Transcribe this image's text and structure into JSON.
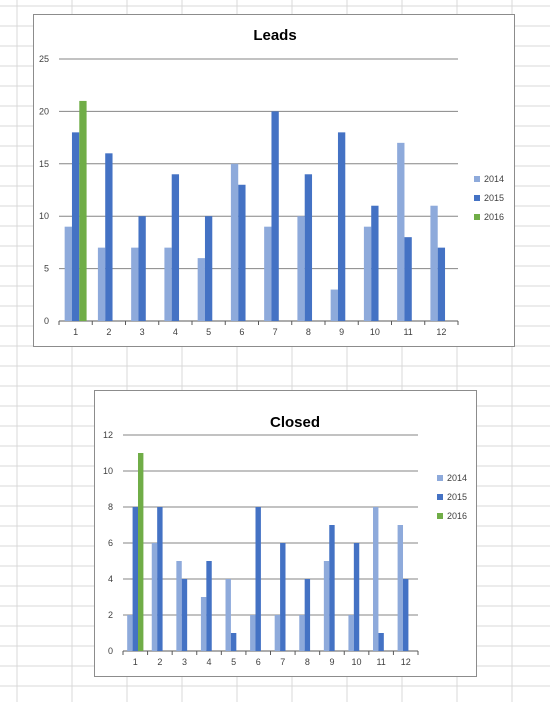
{
  "sheet": {
    "gridline_color": "#d9d9d9"
  },
  "colors": {
    "2014": "#8eaadb",
    "2015": "#4472c4",
    "2016": "#70ad47"
  },
  "chart_data": [
    {
      "type": "bar",
      "title": "Leads",
      "categories": [
        "1",
        "2",
        "3",
        "4",
        "5",
        "6",
        "7",
        "8",
        "9",
        "10",
        "11",
        "12"
      ],
      "series": [
        {
          "name": "2014",
          "values": [
            9,
            7,
            7,
            7,
            6,
            15,
            9,
            10,
            3,
            9,
            17,
            11
          ]
        },
        {
          "name": "2015",
          "values": [
            18,
            16,
            10,
            14,
            10,
            13,
            20,
            14,
            18,
            11,
            8,
            7
          ]
        },
        {
          "name": "2016",
          "values": [
            21,
            null,
            null,
            null,
            null,
            null,
            null,
            null,
            null,
            null,
            null,
            null
          ]
        }
      ],
      "y_ticks": [
        "0",
        "5",
        "10",
        "15",
        "20",
        "25"
      ],
      "ylim": [
        0,
        25
      ],
      "grid": true,
      "legend": "right"
    },
    {
      "type": "bar",
      "title": "Closed",
      "categories": [
        "1",
        "2",
        "3",
        "4",
        "5",
        "6",
        "7",
        "8",
        "9",
        "10",
        "11",
        "12"
      ],
      "series": [
        {
          "name": "2014",
          "values": [
            2,
            6,
            5,
            3,
            4,
            2,
            2,
            2,
            5,
            2,
            8,
            7
          ]
        },
        {
          "name": "2015",
          "values": [
            8,
            8,
            4,
            5,
            1,
            8,
            6,
            4,
            7,
            6,
            1,
            4
          ]
        },
        {
          "name": "2016",
          "values": [
            11,
            null,
            null,
            null,
            null,
            null,
            null,
            null,
            null,
            null,
            null,
            null
          ]
        }
      ],
      "y_ticks": [
        "0",
        "2",
        "4",
        "6",
        "8",
        "10",
        "12"
      ],
      "ylim": [
        0,
        12
      ],
      "grid": true,
      "legend": "right"
    }
  ]
}
